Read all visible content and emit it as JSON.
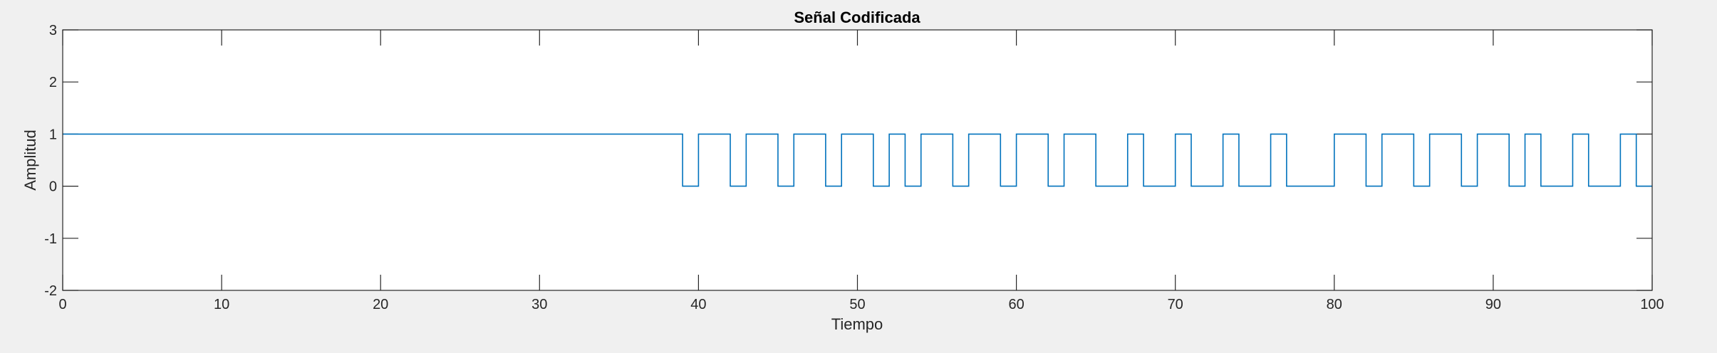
{
  "chart_data": {
    "type": "line",
    "step": true,
    "title": "Señal Codificada",
    "xlabel": "Tiempo",
    "ylabel": "Amplitud",
    "xlim": [
      0,
      100
    ],
    "ylim": [
      -2,
      3
    ],
    "xticks": [
      0,
      10,
      20,
      30,
      40,
      50,
      60,
      70,
      80,
      90,
      100
    ],
    "yticks": [
      -2,
      -1,
      0,
      1,
      2,
      3
    ],
    "grid": false,
    "line_color": "#0072bd",
    "series": [
      {
        "x": [
          0,
          39,
          39,
          40,
          40,
          42,
          42,
          43,
          43,
          45,
          45,
          46,
          46,
          48,
          48,
          49,
          49,
          51,
          51,
          52,
          52,
          53,
          53,
          54,
          54,
          56,
          56,
          57,
          57,
          59,
          59,
          60,
          60,
          62,
          62,
          63,
          63,
          65,
          65,
          67,
          67,
          68,
          68,
          70,
          70,
          71,
          71,
          73,
          73,
          74,
          74,
          76,
          76,
          77,
          77,
          80,
          80,
          82,
          82,
          83,
          83,
          85,
          85,
          86,
          86,
          88,
          88,
          89,
          89,
          91,
          91,
          92,
          92,
          93,
          93,
          95,
          95,
          96,
          96,
          98,
          98,
          99,
          99,
          100
        ],
        "y": [
          1,
          1,
          0,
          0,
          1,
          1,
          0,
          0,
          1,
          1,
          0,
          0,
          1,
          1,
          0,
          0,
          1,
          1,
          0,
          0,
          1,
          1,
          0,
          0,
          1,
          1,
          0,
          0,
          1,
          1,
          0,
          0,
          1,
          1,
          0,
          0,
          1,
          1,
          0,
          0,
          1,
          1,
          0,
          0,
          1,
          1,
          0,
          0,
          1,
          1,
          0,
          0,
          1,
          1,
          0,
          0,
          1,
          1,
          0,
          0,
          1,
          1,
          0,
          0,
          1,
          1,
          0,
          0,
          1,
          1,
          0,
          0,
          1,
          1,
          0,
          0,
          1,
          1,
          0,
          0,
          1,
          1,
          0,
          0
        ]
      }
    ]
  }
}
